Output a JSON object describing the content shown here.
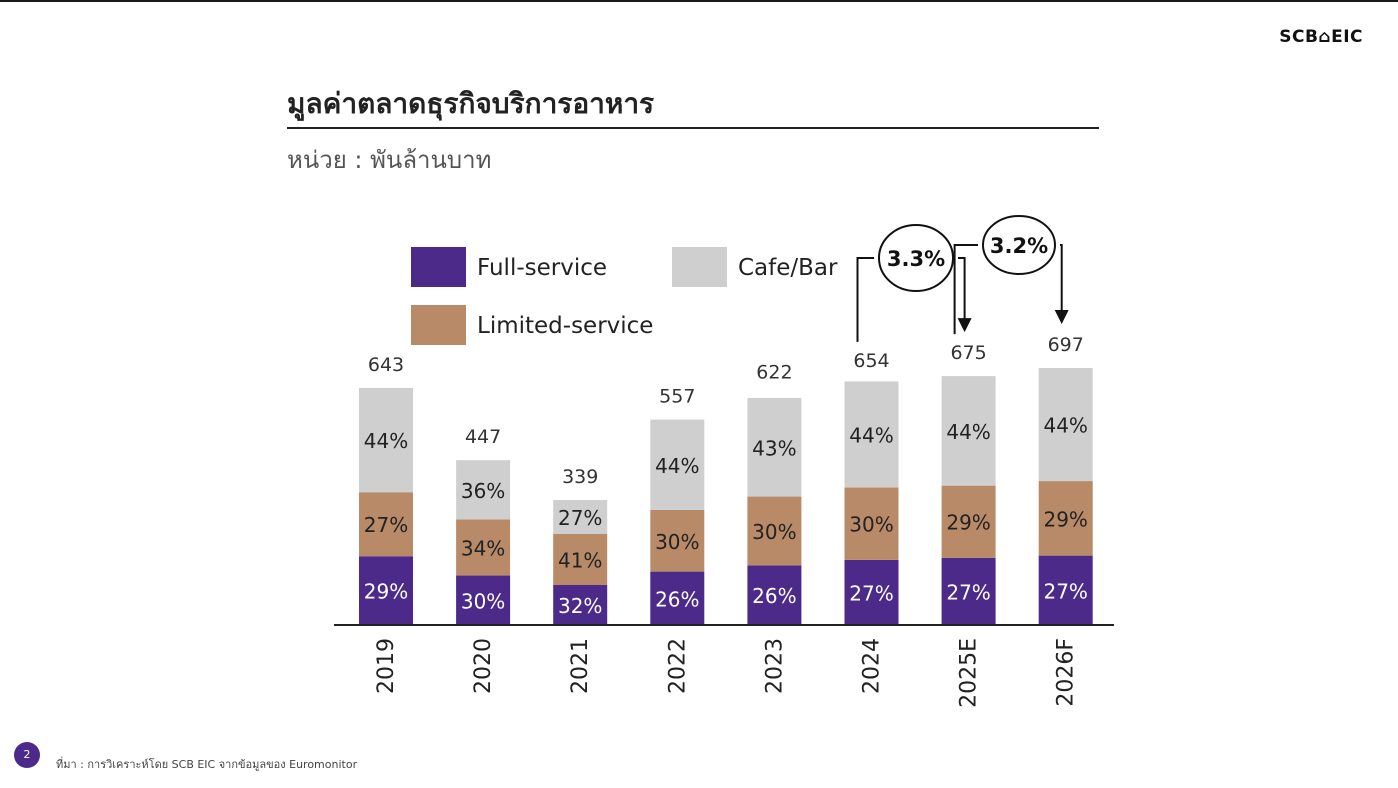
{
  "logo": "SCB⌂EIC",
  "title": "มูลค่าตลาดธุรกิจบริการอาหาร",
  "unit": "หน่วย : พันล้านบาท",
  "page_number": "2",
  "source": "ที่มา : การวิเคราะห์โดย SCB EIC จากข้อมูลของ Euromonitor",
  "colors": {
    "full_service": "#4b2a8a",
    "limited_service": "#b98a68",
    "cafe_bar": "#cfcfcf"
  },
  "chart_data": {
    "type": "bar",
    "stacked": true,
    "title": "มูลค่าตลาดธุรกิจบริการอาหาร",
    "ylabel": "หน่วย : พันล้านบาท",
    "xlabel": "",
    "categories": [
      "2019",
      "2020",
      "2021",
      "2022",
      "2023",
      "2024",
      "2025E",
      "2026F"
    ],
    "totals": [
      643,
      447,
      339,
      557,
      622,
      654,
      675,
      697
    ],
    "series": [
      {
        "name": "Full-service",
        "color": "#4b2a8a",
        "share_pct": [
          29,
          30,
          32,
          26,
          26,
          27,
          27,
          27
        ]
      },
      {
        "name": "Limited-service",
        "color": "#b98a68",
        "share_pct": [
          27,
          34,
          41,
          30,
          30,
          30,
          29,
          29
        ]
      },
      {
        "name": "Cafe/Bar",
        "color": "#cfcfcf",
        "share_pct": [
          44,
          36,
          27,
          44,
          43,
          44,
          44,
          44
        ]
      }
    ],
    "growth_annotations": [
      {
        "label": "3.3%",
        "from": "2024",
        "to": "2025E"
      },
      {
        "label": "3.2%",
        "from": "2025E",
        "to": "2026F"
      }
    ],
    "legend": [
      "Full-service",
      "Cafe/Bar",
      "Limited-service"
    ],
    "ylim": [
      0,
      697
    ]
  }
}
